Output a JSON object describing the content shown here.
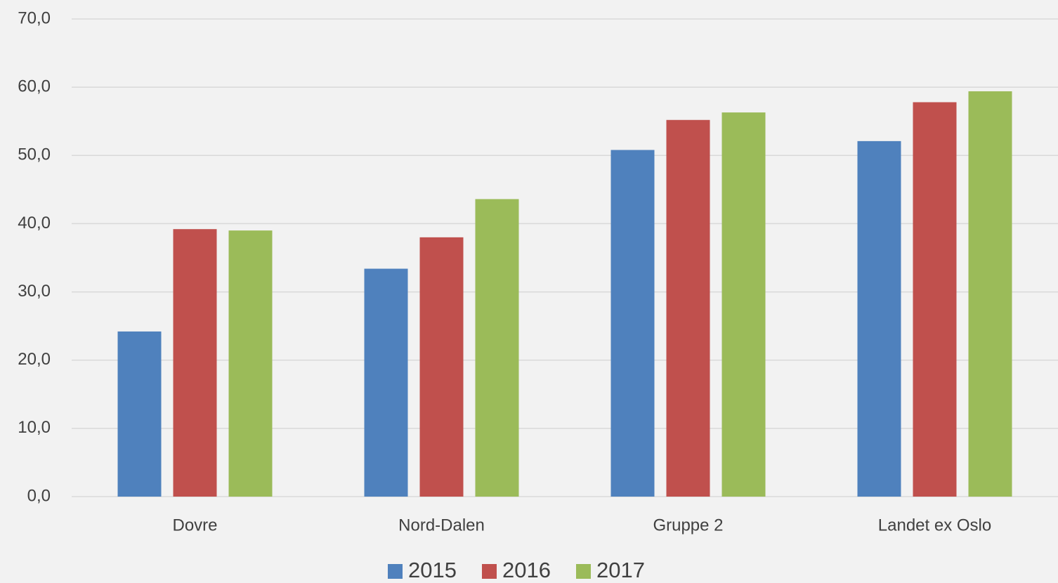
{
  "chart_data": {
    "type": "bar",
    "categories": [
      "Dovre",
      "Nord-Dalen",
      "Gruppe 2",
      "Landet ex Oslo"
    ],
    "series": [
      {
        "name": "2015",
        "color": "#4f81bd",
        "values": [
          24.2,
          33.4,
          50.8,
          52.1
        ]
      },
      {
        "name": "2016",
        "color": "#c0504d",
        "values": [
          39.2,
          38.0,
          55.2,
          57.8
        ]
      },
      {
        "name": "2017",
        "color": "#9bbb59",
        "values": [
          39.0,
          43.6,
          56.3,
          59.4
        ]
      }
    ],
    "ylim": [
      0,
      70
    ],
    "yticks": [
      {
        "value": 0,
        "label": "0,0"
      },
      {
        "value": 10,
        "label": "10,0"
      },
      {
        "value": 20,
        "label": "20,0"
      },
      {
        "value": 30,
        "label": "30,0"
      },
      {
        "value": 40,
        "label": "40,0"
      },
      {
        "value": 50,
        "label": "50,0"
      },
      {
        "value": 60,
        "label": "60,0"
      },
      {
        "value": 70,
        "label": "70,0"
      }
    ],
    "grid": true,
    "legend": "bottom"
  }
}
